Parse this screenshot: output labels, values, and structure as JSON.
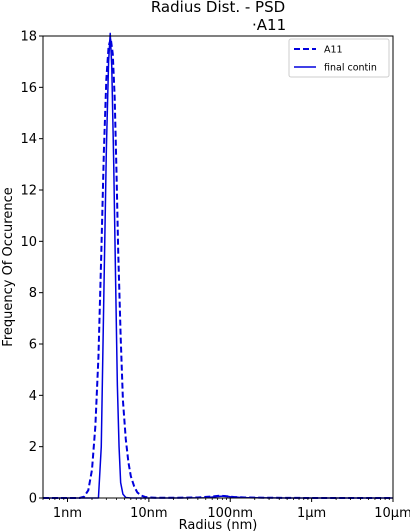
{
  "chart_data": {
    "type": "line",
    "title_lines": [
      "Radius Dist. - PSD",
      "·A11"
    ],
    "xlabel": "Radius (nm)",
    "ylabel": "Frequency Of Occurence",
    "xscale": "log",
    "xlim": [
      0.5,
      10000
    ],
    "ylim": [
      0,
      18
    ],
    "x_ticks": [
      {
        "value": 1,
        "label": "1nm"
      },
      {
        "value": 10,
        "label": "10nm"
      },
      {
        "value": 100,
        "label": "100nm"
      },
      {
        "value": 1000,
        "label": "1µm"
      },
      {
        "value": 10000,
        "label": "10µm"
      }
    ],
    "y_ticks": [
      0,
      2,
      4,
      6,
      8,
      10,
      12,
      14,
      16,
      18
    ],
    "grid": false,
    "legend": {
      "placement": "top-right"
    },
    "series": [
      {
        "name": "A11",
        "style": "dashed",
        "color": "#0000dd",
        "x": [
          0.5,
          1.4,
          1.6,
          1.8,
          2.0,
          2.2,
          2.4,
          2.6,
          2.8,
          3.0,
          3.2,
          3.4,
          3.6,
          3.8,
          4.0,
          4.2,
          4.5,
          4.8,
          5.2,
          5.6,
          6.0,
          6.6,
          7.2,
          8.0,
          9.0,
          10,
          12,
          20,
          40,
          60,
          75,
          90,
          110,
          150,
          300,
          1000,
          10000
        ],
        "y": [
          0,
          0,
          0.05,
          0.3,
          1.1,
          2.8,
          5.5,
          9.5,
          13.5,
          16.3,
          17.6,
          17.9,
          17.3,
          15.6,
          12.7,
          9.6,
          6.3,
          3.8,
          2.3,
          1.4,
          0.85,
          0.45,
          0.22,
          0.1,
          0.04,
          0.02,
          0.01,
          0.01,
          0.02,
          0.06,
          0.09,
          0.07,
          0.04,
          0.02,
          0.01,
          0,
          0
        ]
      },
      {
        "name": "final contin",
        "style": "solid",
        "color": "#0000dd",
        "x": [
          0.5,
          2.4,
          2.6,
          2.8,
          3.0,
          3.2,
          3.35,
          3.5,
          3.7,
          3.9,
          4.1,
          4.3,
          4.5,
          4.8,
          5.2,
          6.0,
          20,
          50,
          70,
          85,
          100,
          150,
          500,
          10000
        ],
        "y": [
          0,
          0,
          2.0,
          8.0,
          13.5,
          17.0,
          18.1,
          16.8,
          13.0,
          8.5,
          4.4,
          2.0,
          0.6,
          0.15,
          0.02,
          0,
          0,
          0.01,
          0.06,
          0.08,
          0.05,
          0.01,
          0,
          0
        ]
      }
    ]
  }
}
